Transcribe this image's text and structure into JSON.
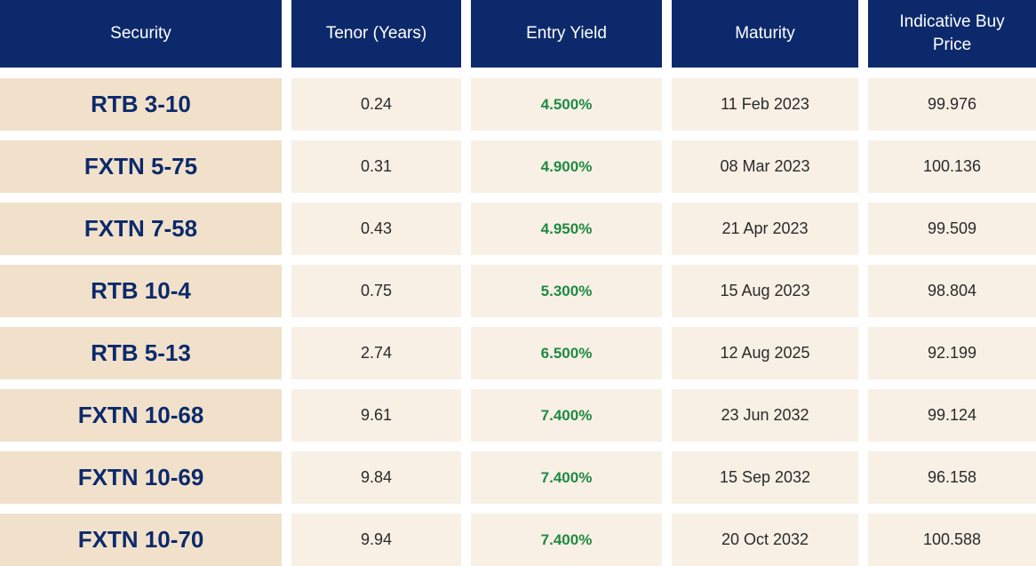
{
  "table": {
    "headers": [
      "Security",
      "Tenor (Years)",
      "Entry Yield",
      "Maturity",
      "Indicative Buy Price"
    ],
    "rows": [
      {
        "security": "RTB 3-10",
        "tenor": "0.24",
        "entry_yield": "4.500%",
        "maturity": "11 Feb 2023",
        "price": "99.976"
      },
      {
        "security": "FXTN 5-75",
        "tenor": "0.31",
        "entry_yield": "4.900%",
        "maturity": "08 Mar 2023",
        "price": "100.136"
      },
      {
        "security": "FXTN 7-58",
        "tenor": "0.43",
        "entry_yield": "4.950%",
        "maturity": "21 Apr 2023",
        "price": "99.509"
      },
      {
        "security": "RTB 10-4",
        "tenor": "0.75",
        "entry_yield": "5.300%",
        "maturity": "15 Aug 2023",
        "price": "98.804"
      },
      {
        "security": "RTB 5-13",
        "tenor": "2.74",
        "entry_yield": "6.500%",
        "maturity": "12 Aug 2025",
        "price": "92.199"
      },
      {
        "security": "FXTN 10-68",
        "tenor": "9.61",
        "entry_yield": "7.400%",
        "maturity": "23 Jun 2032",
        "price": "99.124"
      },
      {
        "security": "FXTN 10-69",
        "tenor": "9.84",
        "entry_yield": "7.400%",
        "maturity": "15 Sep 2032",
        "price": "96.158"
      },
      {
        "security": "FXTN 10-70",
        "tenor": "9.94",
        "entry_yield": "7.400%",
        "maturity": "20 Oct 2032",
        "price": "100.588"
      }
    ]
  },
  "colors": {
    "header_bg": "#0c2a6b",
    "security_bg": "#f1e1cb",
    "value_bg": "#f8f0e5",
    "yield_text": "#1f8a42"
  }
}
